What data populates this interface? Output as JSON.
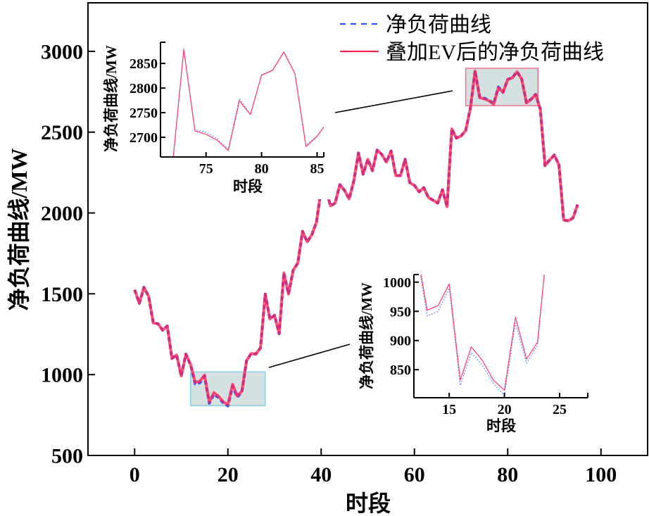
{
  "chart_data": [
    {
      "id": "main",
      "type": "line",
      "xlabel": "时段",
      "ylabel": "净负荷曲线/MW",
      "xlim": [
        -10,
        110
      ],
      "ylim": [
        500,
        3300
      ],
      "xticks": [
        0,
        20,
        40,
        60,
        80,
        100
      ],
      "yticks": [
        500,
        1000,
        1500,
        2000,
        2500,
        3000
      ],
      "grid": false,
      "legend": {
        "placement": "top-right",
        "entries": [
          "净负荷曲线",
          "叠加EV后的净负荷曲线"
        ]
      },
      "x_start": 0,
      "series": [
        {
          "name": "净负荷曲线",
          "color": "#3355ff",
          "style": "dashed",
          "values": [
            1525,
            1441,
            1540,
            1485,
            1319,
            1315,
            1275,
            1301,
            1100,
            1122,
            991,
            1127,
            1058,
            942,
            950,
            990,
            823,
            879,
            858,
            826,
            806,
            930,
            861,
            892,
            1087,
            1131,
            1127,
            1166,
            1498,
            1345,
            1367,
            1253,
            1629,
            1498,
            1646,
            1690,
            1886,
            1821,
            1865,
            1943,
            2148,
            2148,
            2044,
            2061,
            2175,
            2140,
            2087,
            2197,
            2371,
            2240,
            2332,
            2262,
            2389,
            2362,
            2314,
            2384,
            2231,
            2231,
            2332,
            2188,
            2170,
            2131,
            2157,
            2096,
            2079,
            2061,
            2144,
            2039,
            2520,
            2463,
            2476,
            2511,
            2650,
            2880,
            2716,
            2710,
            2697,
            2676,
            2779,
            2747,
            2827,
            2837,
            2874,
            2830,
            2684,
            2703,
            2734,
            2642,
            2293,
            2328,
            2358,
            2297,
            1956,
            1952,
            1969,
            2052
          ]
        },
        {
          "name": "叠加EV后的净负荷曲线",
          "color": "#ff2255",
          "style": "solid",
          "values": [
            1525,
            1441,
            1540,
            1485,
            1319,
            1315,
            1275,
            1301,
            1100,
            1122,
            991,
            1127,
            1062,
            952,
            960,
            997,
            832,
            889,
            866,
            832,
            815,
            940,
            868,
            897,
            1087,
            1131,
            1127,
            1166,
            1498,
            1345,
            1367,
            1253,
            1629,
            1498,
            1646,
            1690,
            1886,
            1821,
            1865,
            1943,
            2148,
            2148,
            2044,
            2061,
            2175,
            2140,
            2087,
            2197,
            2371,
            2240,
            2332,
            2262,
            2389,
            2362,
            2314,
            2384,
            2231,
            2231,
            2332,
            2188,
            2170,
            2131,
            2157,
            2096,
            2079,
            2061,
            2144,
            2039,
            2520,
            2463,
            2476,
            2511,
            2648,
            2878,
            2713,
            2706,
            2694,
            2673,
            2774,
            2746,
            2826,
            2836,
            2873,
            2829,
            2681,
            2702,
            2733,
            2642,
            2293,
            2328,
            2358,
            2297,
            1956,
            1952,
            1969,
            2052
          ]
        }
      ],
      "zoom_regions": [
        {
          "xrange": [
            12,
            28
          ],
          "yrange": [
            808,
            1017
          ],
          "fill": "#d5e0e0",
          "border": "#88d0e8"
        },
        {
          "xrange": [
            71,
            86.5
          ],
          "yrange": [
            2664,
            2895
          ],
          "fill": "#d5e0e0",
          "border": "#f07090"
        }
      ]
    },
    {
      "id": "inset-peak",
      "type": "line",
      "xlabel": "时段",
      "ylabel": "净负荷曲线/MW",
      "xlim": [
        70.9,
        85.6
      ],
      "ylim": [
        2660,
        2893
      ],
      "xticks": [
        75,
        80,
        85
      ],
      "yticks": [
        2700,
        2750,
        2800,
        2850
      ],
      "x_start": 72,
      "series": [
        {
          "name": "净负荷曲线",
          "color": "#7799ff",
          "style": "dotted",
          "values": [
            2650,
            2880,
            2716,
            2710,
            2697,
            2676,
            2779,
            2747,
            2827,
            2837,
            2874,
            2830,
            2684,
            2703,
            2734
          ]
        },
        {
          "name": "叠加EV后的净负荷曲线",
          "color": "#ff4477",
          "style": "solid",
          "values": [
            2648,
            2878,
            2713,
            2706,
            2694,
            2673,
            2774,
            2746,
            2826,
            2836,
            2873,
            2829,
            2681,
            2702,
            2733
          ]
        }
      ]
    },
    {
      "id": "inset-valley",
      "type": "line",
      "xlabel": "时段",
      "ylabel": "净负荷曲线/MW",
      "xlim": [
        11.8,
        27.55
      ],
      "ylim": [
        802,
        1013
      ],
      "xticks": [
        15,
        20,
        25
      ],
      "yticks": [
        850,
        900,
        950,
        1000
      ],
      "x_start": 12,
      "series": [
        {
          "name": "净负荷曲线",
          "color": "#7799ff",
          "style": "dotted",
          "values": [
            1058,
            942,
            950,
            990,
            823,
            879,
            858,
            826,
            806,
            930,
            861,
            892,
            1087
          ]
        },
        {
          "name": "叠加EV后的净负荷曲线",
          "color": "#ff4477",
          "style": "solid",
          "values": [
            1062,
            952,
            960,
            997,
            832,
            889,
            866,
            832,
            815,
            940,
            868,
            897,
            1087
          ]
        }
      ]
    }
  ]
}
